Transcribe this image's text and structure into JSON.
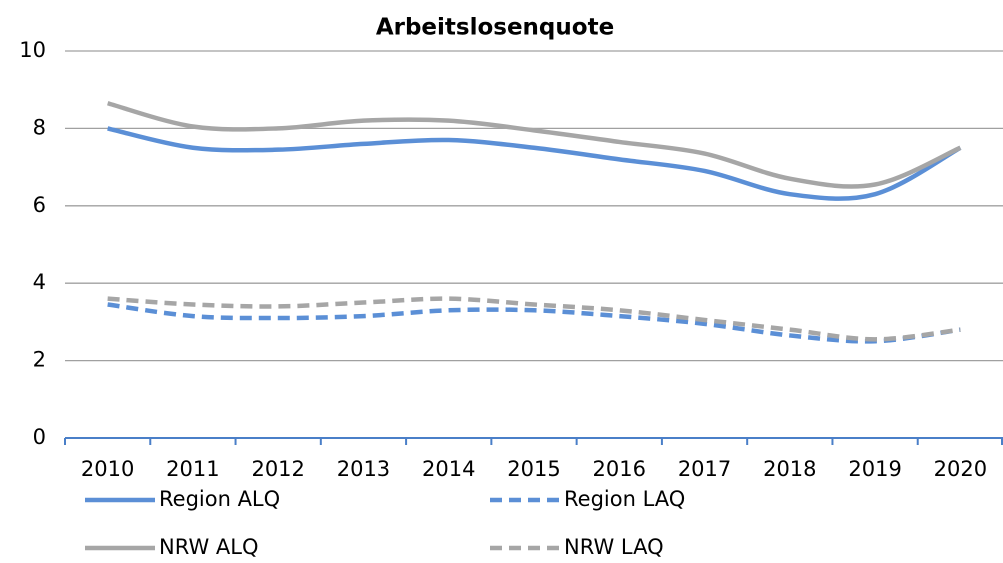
{
  "chart_data": {
    "type": "line",
    "title": "Arbeitslosenquote",
    "categories": [
      "2010",
      "2011",
      "2012",
      "2013",
      "2014",
      "2015",
      "2016",
      "2017",
      "2018",
      "2019",
      "2020"
    ],
    "series": [
      {
        "name": "Region ALQ",
        "color": "#5b8fd6",
        "dashed": false,
        "values": [
          8.0,
          7.5,
          7.45,
          7.6,
          7.7,
          7.5,
          7.2,
          6.9,
          6.3,
          6.3,
          7.5
        ]
      },
      {
        "name": "Region LAQ",
        "color": "#5b8fd6",
        "dashed": true,
        "values": [
          3.45,
          3.15,
          3.1,
          3.15,
          3.3,
          3.3,
          3.15,
          2.95,
          2.65,
          2.5,
          2.8
        ]
      },
      {
        "name": "NRW ALQ",
        "color": "#a6a6a6",
        "dashed": false,
        "values": [
          8.65,
          8.05,
          8.0,
          8.2,
          8.2,
          7.95,
          7.65,
          7.35,
          6.7,
          6.55,
          7.5
        ]
      },
      {
        "name": "NRW LAQ",
        "color": "#a6a6a6",
        "dashed": true,
        "values": [
          3.6,
          3.45,
          3.4,
          3.5,
          3.6,
          3.45,
          3.3,
          3.05,
          2.8,
          2.55,
          2.8
        ]
      }
    ],
    "ylim": [
      0,
      10
    ],
    "yticks": [
      0,
      2,
      4,
      6,
      8,
      10
    ],
    "grid": true,
    "legend": "bottom"
  }
}
